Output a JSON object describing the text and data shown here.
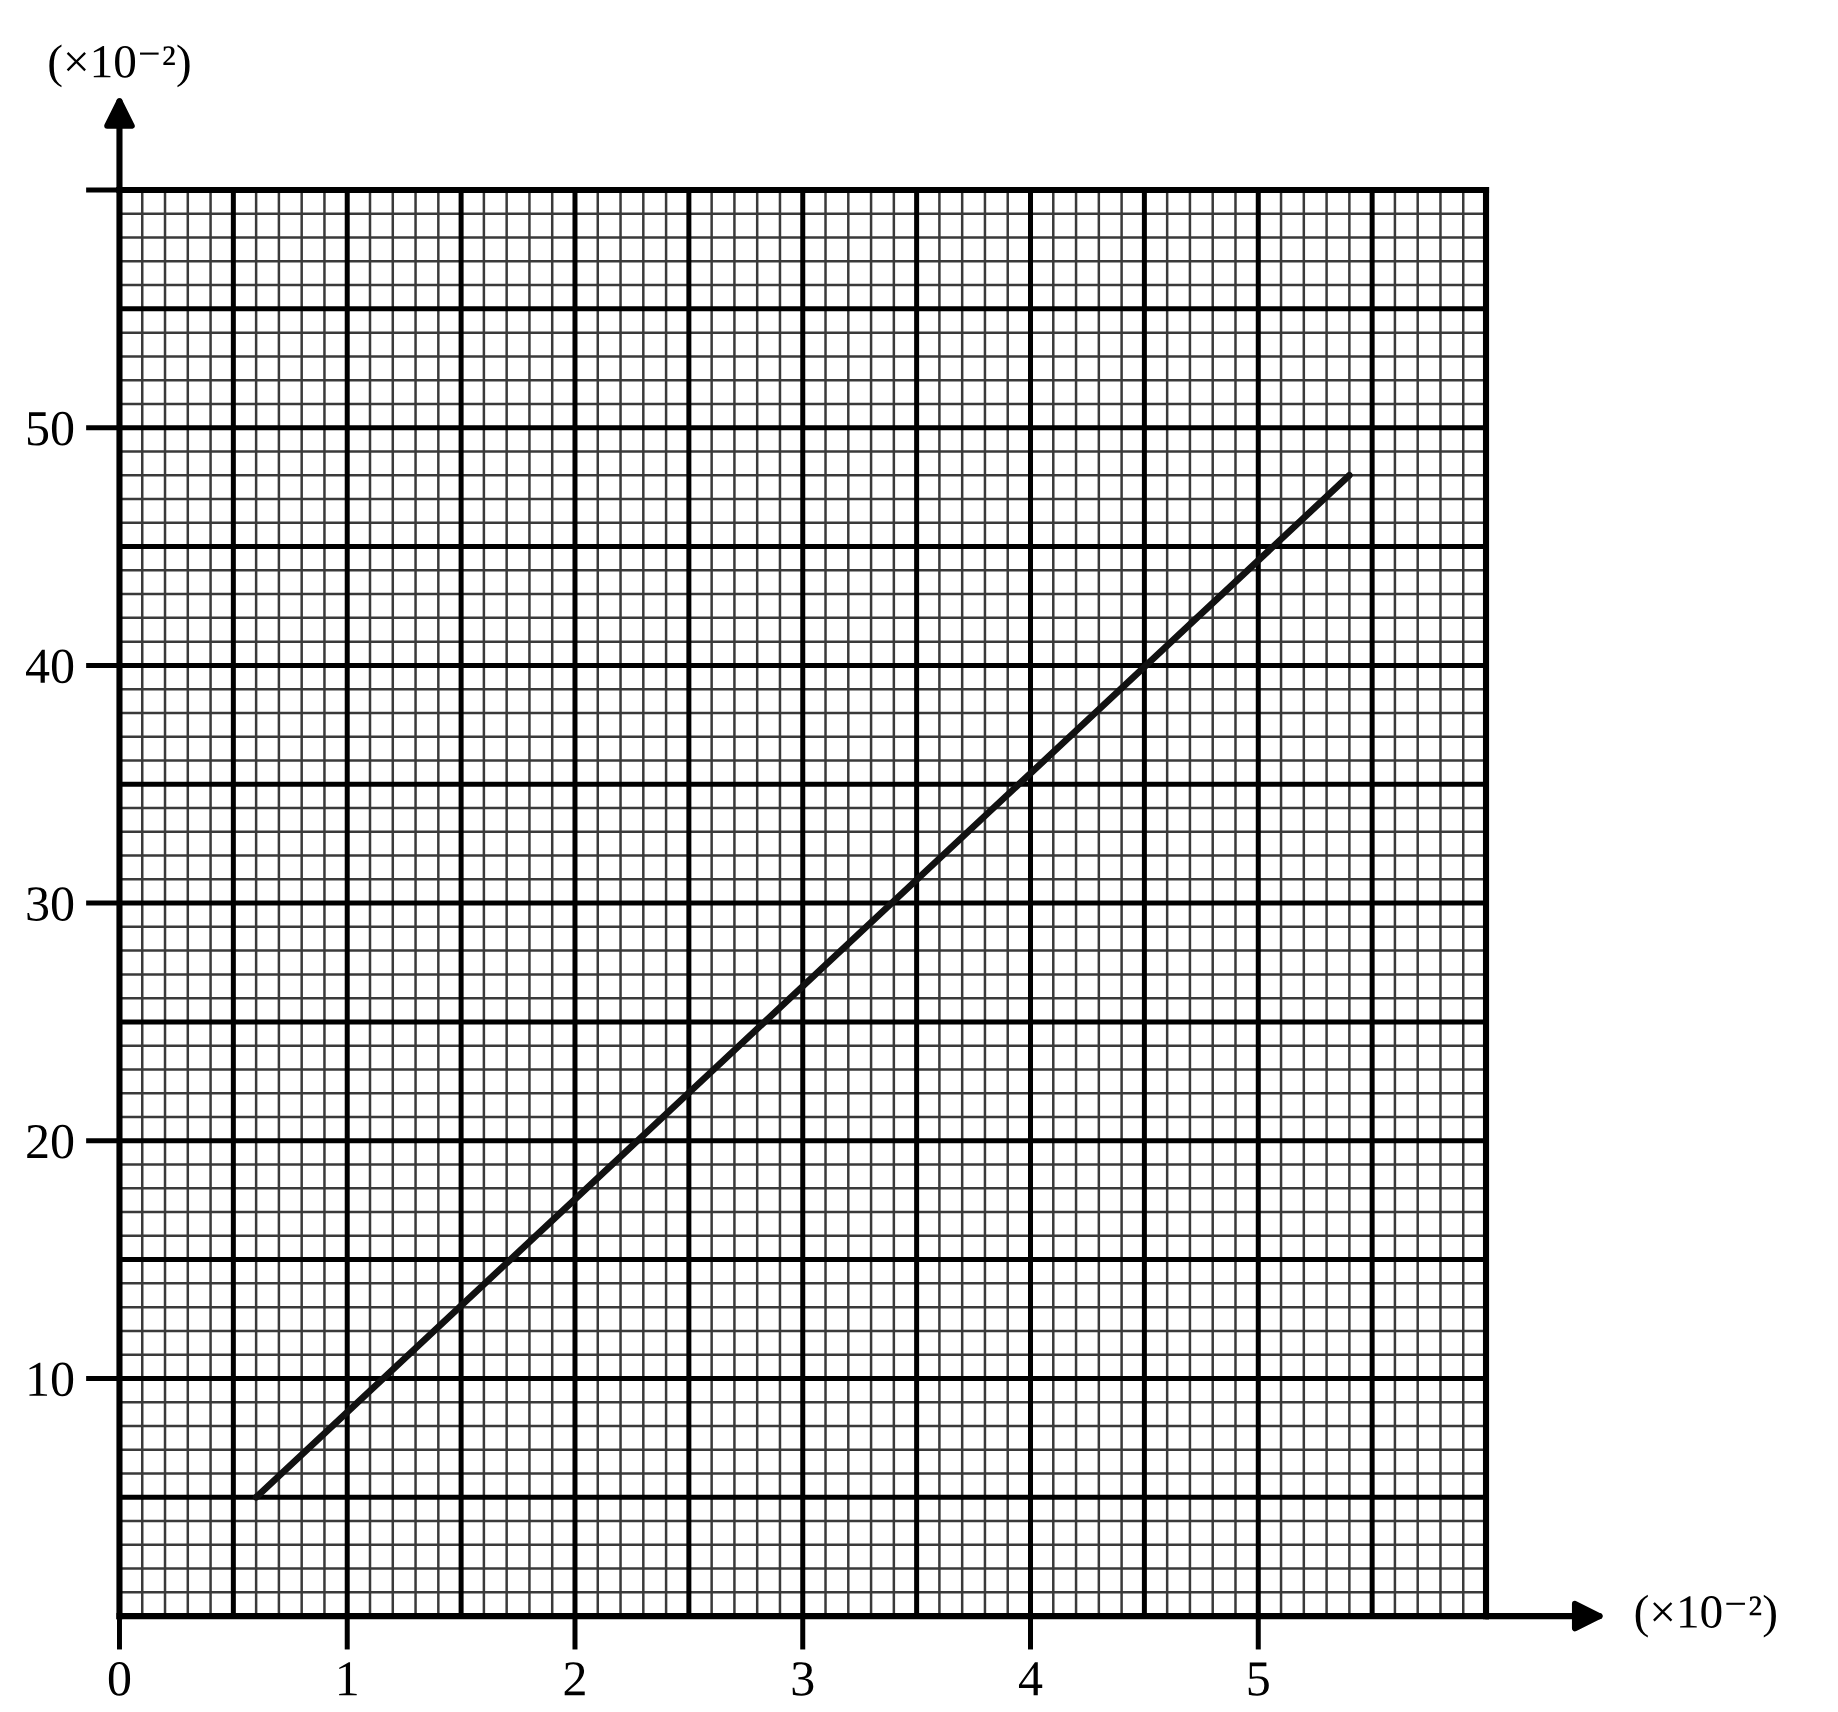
{
  "chart_data": {
    "type": "line",
    "xlabel": "(×10⁻²)",
    "ylabel": "(×10⁻²)",
    "x": [
      0.6,
      5.4
    ],
    "values": [
      5,
      48
    ],
    "color": "#111111",
    "xlim": [
      0,
      6
    ],
    "ylim": [
      0,
      60
    ],
    "xticks": [
      0,
      1,
      2,
      3,
      4,
      5
    ],
    "yticks": [
      10,
      20,
      30,
      40,
      50,
      {
        "value": 60,
        "label": null
      }
    ],
    "grid": true,
    "line_style": "solid"
  }
}
